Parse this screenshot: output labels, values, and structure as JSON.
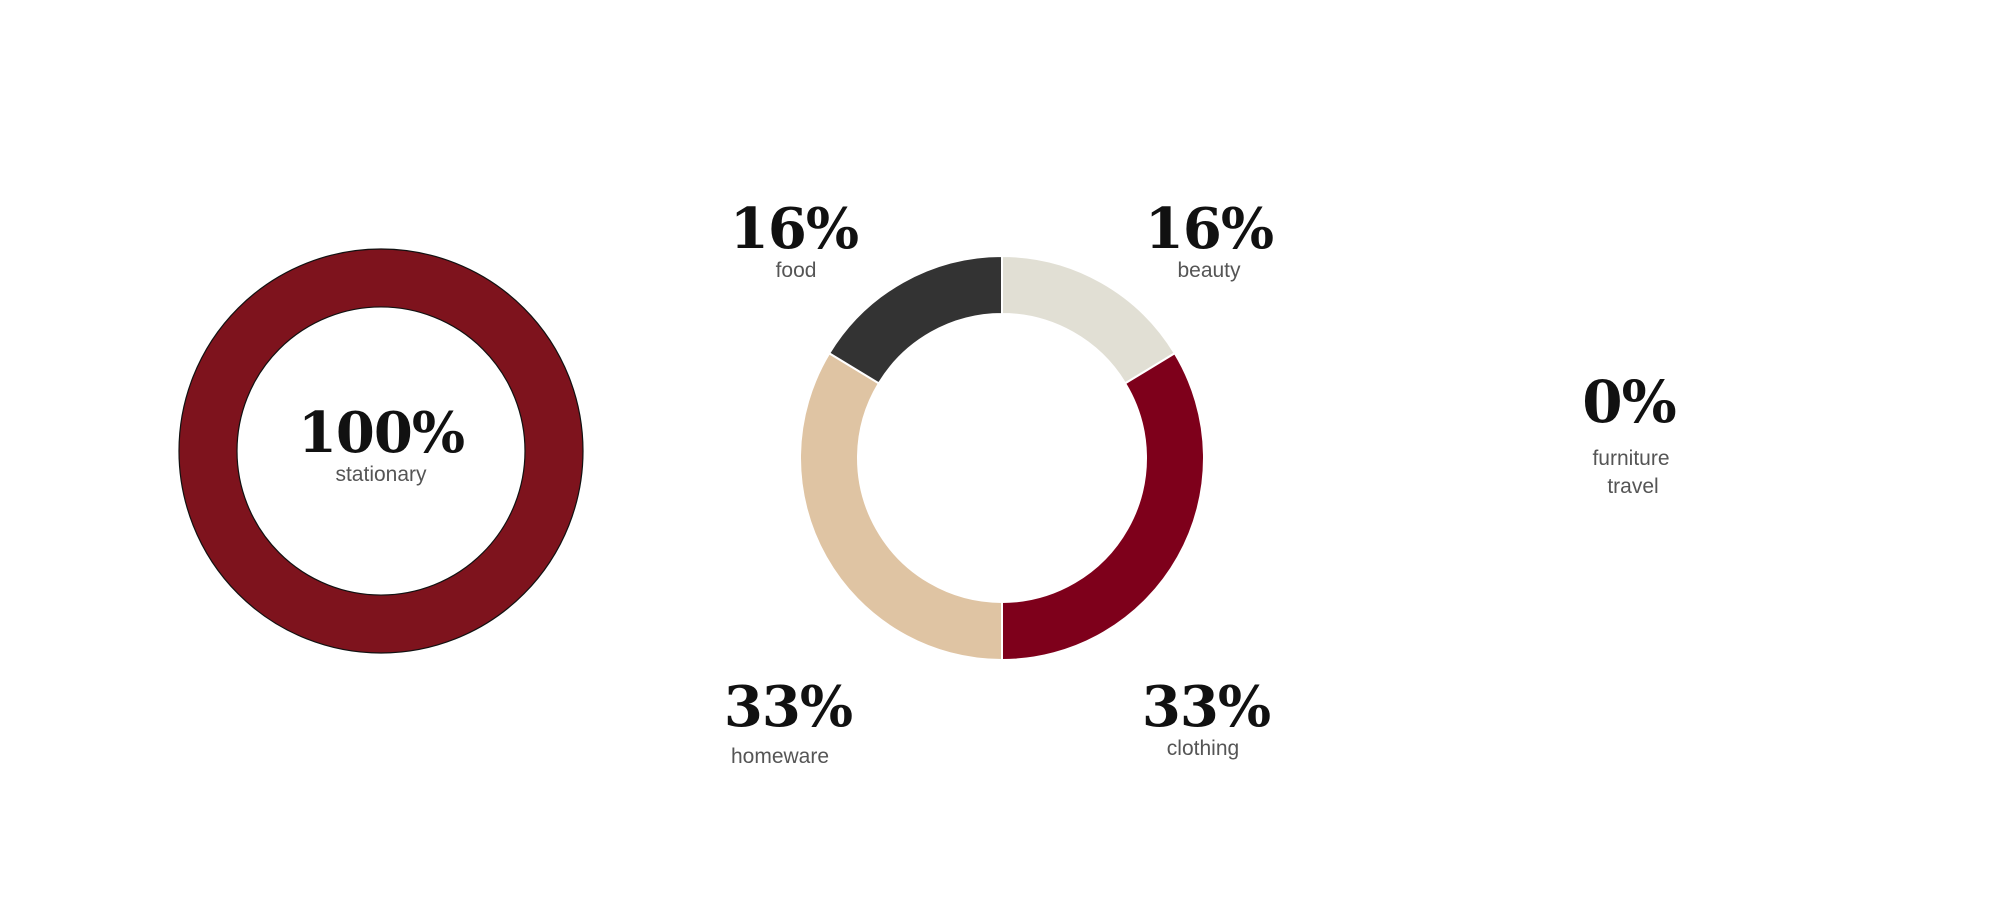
{
  "chart_data": [
    {
      "type": "pie",
      "variant": "donut",
      "slices": [
        {
          "label": "stationary",
          "value": 100,
          "display": "100%",
          "color": "#7e131d"
        }
      ]
    },
    {
      "type": "pie",
      "variant": "donut",
      "slices": [
        {
          "label": "beauty",
          "value": 16,
          "display": "16%",
          "color": "#e1dfd4"
        },
        {
          "label": "clothing",
          "value": 33,
          "display": "33%",
          "color": "#7e001b"
        },
        {
          "label": "homeware",
          "value": 33,
          "display": "33%",
          "color": "#dfc4a3"
        },
        {
          "label": "food",
          "value": 16,
          "display": "16%",
          "color": "#333333"
        }
      ]
    },
    {
      "type": "pie",
      "variant": "donut",
      "empty": true,
      "value_label": "0%",
      "category_labels": [
        "furniture",
        "travel"
      ]
    }
  ]
}
